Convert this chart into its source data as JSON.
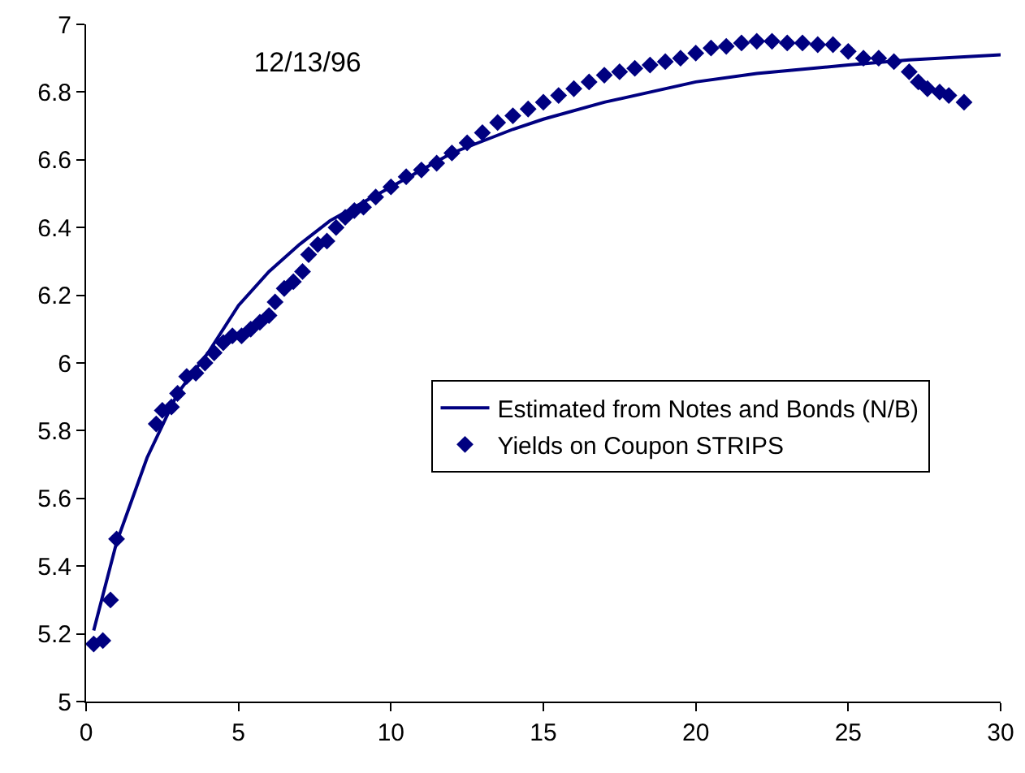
{
  "chart_data": {
    "type": "scatter",
    "title": "12/13/96",
    "xlim": [
      0,
      30
    ],
    "xticks": [
      0,
      5,
      10,
      15,
      20,
      25,
      30
    ],
    "ylim": [
      5,
      7
    ],
    "yticks": [
      5,
      5.2,
      5.4,
      5.6,
      5.8,
      6,
      6.2,
      6.4,
      6.6,
      6.8,
      7
    ],
    "grid": false,
    "legend": "bottom right",
    "series": [
      {
        "name": "Estimated from Notes and Bonds (N/B)",
        "type": "line",
        "color": "#000080",
        "marker": "none",
        "line_style": "solid",
        "x": [
          0.25,
          1,
          2,
          3,
          4,
          5,
          6,
          7,
          8,
          9,
          10,
          12,
          14,
          15,
          17,
          20,
          22,
          25,
          27,
          30
        ],
        "values": [
          5.21,
          5.47,
          5.72,
          5.91,
          6.03,
          6.17,
          6.27,
          6.35,
          6.42,
          6.47,
          6.52,
          6.62,
          6.69,
          6.72,
          6.77,
          6.83,
          6.855,
          6.88,
          6.895,
          6.91
        ]
      },
      {
        "name": "Yields on Coupon STRIPS",
        "color": "#000080",
        "marker": "diamond",
        "x": [
          0.25,
          0.55,
          0.8,
          1.0,
          2.3,
          2.5,
          2.8,
          3.0,
          3.3,
          3.6,
          3.9,
          4.2,
          4.5,
          4.8,
          5.1,
          5.4,
          5.7,
          6.0,
          6.2,
          6.5,
          6.8,
          7.1,
          7.3,
          7.6,
          7.9,
          8.2,
          8.5,
          8.8,
          9.1,
          9.5,
          10,
          10.5,
          11,
          11.5,
          12,
          12.5,
          13,
          13.5,
          14,
          14.5,
          15,
          15.5,
          16,
          16.5,
          17,
          17.5,
          18,
          18.5,
          19,
          19.5,
          20,
          20.5,
          21,
          21.5,
          22,
          22.5,
          23,
          23.5,
          24,
          24.5,
          25,
          25.5,
          26,
          26.5,
          27,
          27.3,
          27.6,
          28,
          28.3,
          28.8
        ],
        "values": [
          5.17,
          5.18,
          5.3,
          5.48,
          5.82,
          5.86,
          5.87,
          5.91,
          5.96,
          5.97,
          6.0,
          6.03,
          6.06,
          6.08,
          6.08,
          6.1,
          6.12,
          6.14,
          6.18,
          6.22,
          6.24,
          6.27,
          6.32,
          6.35,
          6.36,
          6.4,
          6.43,
          6.45,
          6.46,
          6.49,
          6.52,
          6.55,
          6.57,
          6.59,
          6.62,
          6.65,
          6.68,
          6.71,
          6.73,
          6.75,
          6.77,
          6.79,
          6.81,
          6.83,
          6.85,
          6.86,
          6.87,
          6.88,
          6.89,
          6.9,
          6.915,
          6.93,
          6.935,
          6.945,
          6.95,
          6.95,
          6.945,
          6.945,
          6.94,
          6.94,
          6.92,
          6.9,
          6.9,
          6.89,
          6.86,
          6.83,
          6.81,
          6.8,
          6.79,
          6.77
        ]
      }
    ]
  }
}
